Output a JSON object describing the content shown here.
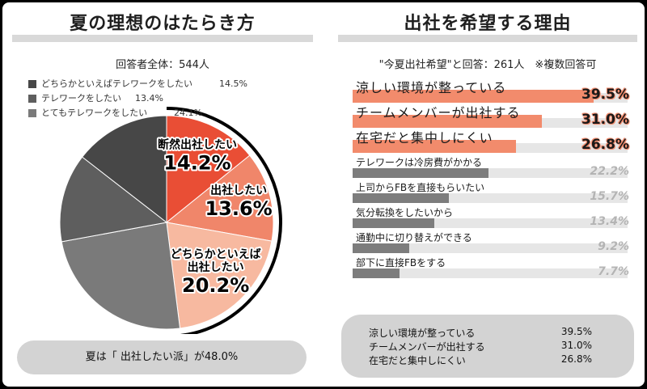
{
  "left": {
    "title": "夏の理想のはたらき方",
    "respondents": "回答者全体：544人",
    "summary": "夏は「 出社したい派」が48.0%"
  },
  "right": {
    "title": "出社を希望する理由",
    "respondents": "\"今夏出社希望\"と回答：261人　※複数回答可",
    "top3": [
      {
        "label": "涼しい環境が整っている",
        "value": "39.5%"
      },
      {
        "label": "チームメンバーが出社する",
        "value": "31.0%"
      },
      {
        "label": "在宅だと集中しにくい",
        "value": "26.8%"
      }
    ]
  },
  "colors": {
    "strong_office": "#e94e35",
    "office": "#f0866a",
    "lean_office": "#f7b9a0",
    "lean_remote": "#7a7a7a",
    "remote": "#5e5e5e",
    "strong_remote": "#474747",
    "bar_orange": "#f28b6c",
    "bar_gray": "#7d7d7d",
    "track": "#e6e6e6"
  },
  "chart_data": [
    {
      "type": "pie",
      "title": "夏の理想のはたらき方",
      "slices": [
        {
          "label": "断然出社したい",
          "value": 14.2,
          "color": "#e94e35"
        },
        {
          "label": "出社したい",
          "value": 13.6,
          "color": "#f0866a"
        },
        {
          "label": "どちらかといえば出社したい",
          "value": 20.2,
          "color": "#f7b9a0"
        },
        {
          "label": "とてもテレワークをしたい",
          "value": 24.1,
          "color": "#7a7a7a"
        },
        {
          "label": "テレワークをしたい",
          "value": 13.4,
          "color": "#5e5e5e"
        },
        {
          "label": "どちらかといえばテレワークをしたい",
          "value": 14.5,
          "color": "#474747"
        }
      ],
      "legend_order": [
        "どちらかといえばテレワークをしたい",
        "テレワークをしたい",
        "とてもテレワークをしたい"
      ]
    },
    {
      "type": "bar",
      "title": "出社を希望する理由",
      "categories": [
        "涼しい環境が整っている",
        "チームメンバーが出社する",
        "在宅だと集中しにくい",
        "テレワークは冷房費がかかる",
        "上司からFBを直接もらいたい",
        "気分転換をしたいから",
        "通勤中に切り替えができる",
        "部下に直接FBをする"
      ],
      "values": [
        39.5,
        31.0,
        26.8,
        22.2,
        15.7,
        13.4,
        9.2,
        7.7
      ],
      "value_labels": [
        "39.5%",
        "31.0%",
        "26.8%",
        "22.2%",
        "15.7%",
        "13.4%",
        "9.2%",
        "7.7%"
      ],
      "highlight_count": 3,
      "xlim": [
        0,
        45
      ]
    }
  ]
}
